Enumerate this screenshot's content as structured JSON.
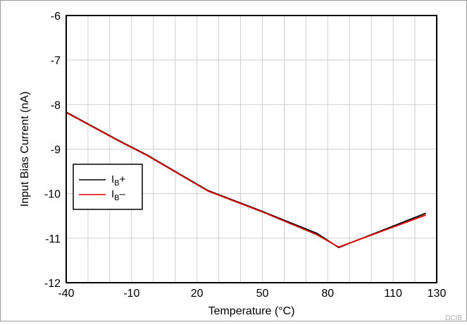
{
  "chart_data": {
    "type": "line",
    "title": "",
    "xlabel": "Temperature (°C)",
    "ylabel": "Input Bias Current (nA)",
    "xlim": [
      -40,
      130
    ],
    "ylim": [
      -12,
      -6
    ],
    "x_ticks": [
      "-40",
      "-10",
      "20",
      "50",
      "80",
      "110",
      "130"
    ],
    "x_tick_values": [
      -40,
      -10,
      20,
      50,
      80,
      110,
      130
    ],
    "y_ticks": [
      "-6",
      "-7",
      "-8",
      "-9",
      "-10",
      "-11",
      "-12"
    ],
    "y_tick_values": [
      -6,
      -7,
      -8,
      -9,
      -10,
      -11,
      -12
    ],
    "x_minor_step": 10,
    "grid": true,
    "legend_position": "middle-left",
    "series": [
      {
        "name_base": "I",
        "name_sub": "B",
        "name_suffix": "+",
        "color": "#000000",
        "x": [
          -40,
          -15,
          -3,
          25,
          50,
          75,
          85,
          125
        ],
        "y": [
          -8.17,
          -8.83,
          -9.13,
          -9.93,
          -10.4,
          -10.89,
          -11.21,
          -10.44
        ]
      },
      {
        "name_base": "I",
        "name_sub": "B",
        "name_suffix": "–",
        "color": "#dd0000",
        "x": [
          -40,
          -15,
          -3,
          25,
          50,
          75,
          85,
          125
        ],
        "y": [
          -8.18,
          -8.84,
          -9.14,
          -9.94,
          -10.41,
          -10.92,
          -11.2,
          -10.48
        ]
      }
    ],
    "watermark": "DCIB"
  }
}
